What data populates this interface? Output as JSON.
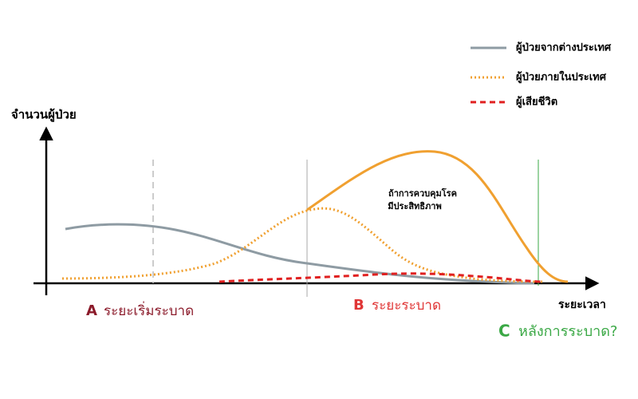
{
  "axes": {
    "y_label": "จำนวนผู้ป่วย",
    "x_label": "ระยะเวลา"
  },
  "legend": [
    "ผู้ป่วยจากต่างประเทศ",
    "ผู้ป่วยภายในประเทศ",
    "ผู้เสียชีวิต"
  ],
  "annotation": [
    "ถ้าการควบคุมโรค",
    "มีประสิทธิภาพ"
  ],
  "phases": [
    {
      "letter": "A",
      "label": "ระยะเริ่มระบาด"
    },
    {
      "letter": "B",
      "label": "ระยะระบาด"
    },
    {
      "letter": "C",
      "label": "หลังการระบาด?"
    }
  ]
}
